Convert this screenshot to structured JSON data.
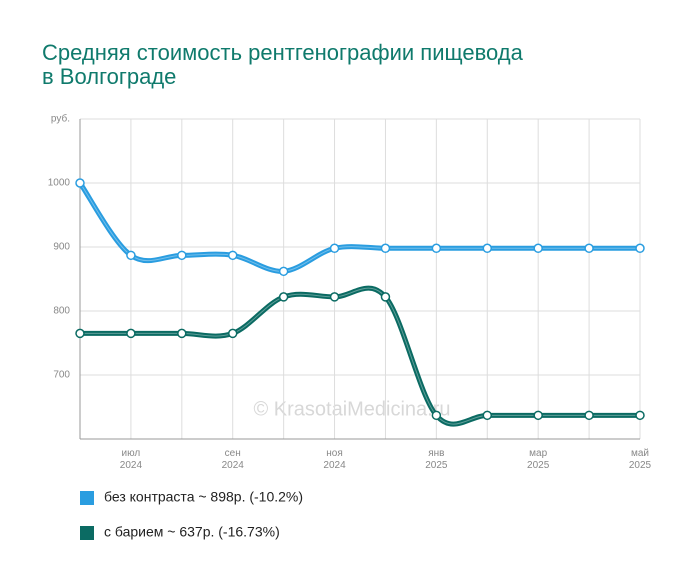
{
  "chart_data": {
    "type": "line",
    "title": [
      "Средняя стоимость рентгенографии пищевода",
      "в Волгограде"
    ],
    "watermark": "© KrasotaiMedicina.ru",
    "categories": [
      null,
      [
        "июл",
        "2024"
      ],
      null,
      [
        "сен",
        "2024"
      ],
      null,
      [
        "ноя",
        "2024"
      ],
      null,
      [
        "янв",
        "2025"
      ],
      null,
      [
        "мар",
        "2025"
      ],
      null,
      [
        "май",
        "2025"
      ]
    ],
    "series": [
      {
        "name": "без контраста ~ 898р. (-10.2%)",
        "color": "#2a9de0",
        "values": [
          1000,
          887,
          887,
          887,
          862,
          898,
          898,
          898,
          898,
          898,
          898,
          898
        ]
      },
      {
        "name": "с барием ~ 637р. (-16.73%)",
        "color": "#0b6b63",
        "values": [
          765,
          765,
          765,
          765,
          822,
          822,
          822,
          637,
          637,
          637,
          637,
          637
        ]
      }
    ],
    "ylim": [
      600,
      1100
    ],
    "yticks": [
      700,
      800,
      900,
      1000,
      {
        "value": 1100,
        "label": "руб."
      }
    ],
    "grid": true
  }
}
